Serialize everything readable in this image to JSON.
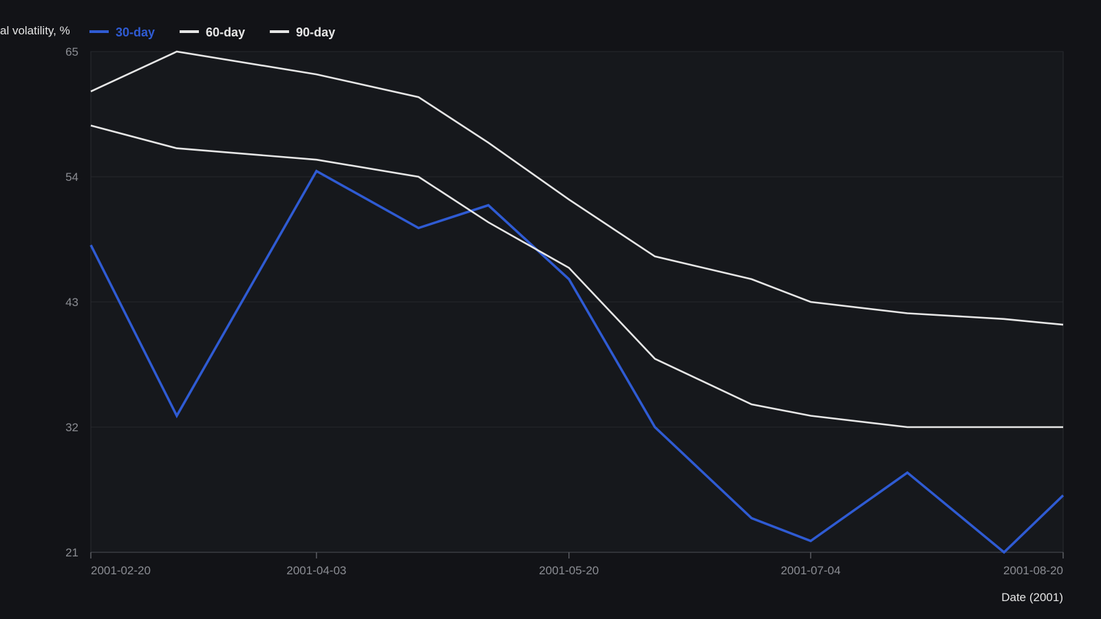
{
  "chart_data": {
    "type": "line",
    "title": "",
    "ylabel": "al volatility, %",
    "xlabel": "Date (2001)",
    "ylim": [
      21,
      65
    ],
    "yticks": [
      21,
      32,
      43,
      54,
      65
    ],
    "xlim": [
      "2001-02-20",
      "2001-08-20"
    ],
    "xticks": [
      "2001-02-20",
      "2001-04-03",
      "2001-05-20",
      "2001-07-04",
      "2001-08-20"
    ],
    "grid": true,
    "legend_position": "top-left",
    "x": [
      "2001-02-20",
      "2001-03-08",
      "2001-04-03",
      "2001-04-22",
      "2001-05-05",
      "2001-05-20",
      "2001-06-05",
      "2001-06-23",
      "2001-07-04",
      "2001-07-22",
      "2001-08-09",
      "2001-08-20"
    ],
    "series": [
      {
        "name": "30-day",
        "color": "#2f5bd3",
        "values": [
          48,
          33,
          54.5,
          49.5,
          51.5,
          45,
          32,
          24,
          22,
          28,
          21,
          26
        ]
      },
      {
        "name": "60-day",
        "color": "#e6e6e6",
        "values": [
          58.5,
          56.5,
          55.5,
          54,
          50,
          46,
          38,
          34,
          33,
          32,
          32,
          32
        ]
      },
      {
        "name": "90-day",
        "color": "#e6e6e6",
        "values": [
          61.5,
          65,
          63,
          61,
          57,
          52,
          47,
          45,
          43,
          42,
          41.5,
          41
        ]
      }
    ]
  }
}
